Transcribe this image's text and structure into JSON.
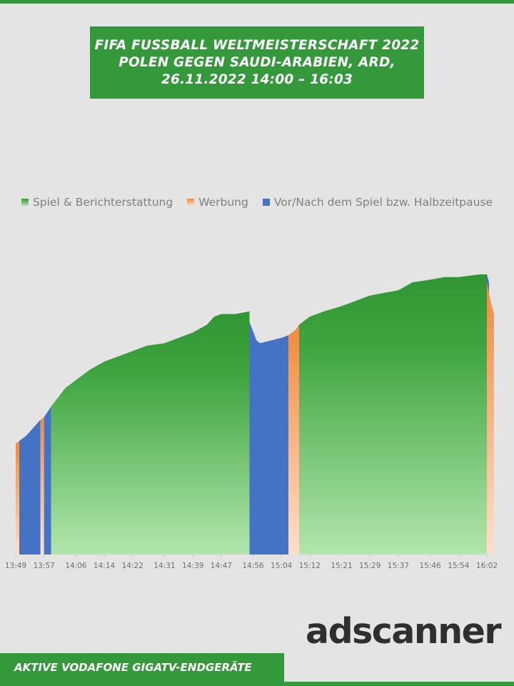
{
  "title_lines": [
    "FIFA FUSSBALL WELTMEISTERSCHAFT 2022",
    "POLEN GEGEN SAUDI-ARABIEN,  ARD,",
    "26.11.2022  14:00 – 16:03"
  ],
  "logo": {
    "ad": "ad",
    "rest": "scanner"
  },
  "footer": "AKTIVE VODAFONE GIGATV-ENDGERÄTE",
  "colors": {
    "accent": "#34993a",
    "game": "#34993a",
    "game_light": "#aee3a8",
    "ads": "#ef8a3c",
    "ads_light": "#fbdcc4",
    "pre_post": "#4472c4"
  },
  "chart_data": {
    "type": "area",
    "title": "",
    "xlabel": "",
    "ylabel": "",
    "x_ticks": [
      "13:49",
      "13:57",
      "14:06",
      "14:14",
      "14:22",
      "14:31",
      "14:39",
      "14:47",
      "14:56",
      "15:04",
      "15:12",
      "15:21",
      "15:29",
      "15:37",
      "15:46",
      "15:54",
      "16:02"
    ],
    "x_range": [
      "13:49",
      "16:04"
    ],
    "grid": false,
    "legend_position": "top",
    "legend": [
      {
        "label": "Spiel & Berichterstattung",
        "color_key": "game"
      },
      {
        "label": "Werbung",
        "color_key": "ads"
      },
      {
        "label": "Vor/Nach dem Spiel bzw. Halbzeitpause",
        "color_key": "pre_post"
      }
    ],
    "y_axis_visible": false,
    "value_unit": "relative audience (peak = 100)",
    "segments": [
      {
        "series": "Werbung",
        "start": "13:49",
        "end": "13:50",
        "points": [
          [
            "13:49",
            42
          ],
          [
            "13:50",
            43
          ]
        ]
      },
      {
        "series": "Vor/Nach dem Spiel bzw. Halbzeitpause",
        "start": "13:50",
        "end": "13:56",
        "points": [
          [
            "13:50",
            43
          ],
          [
            "13:52",
            45
          ],
          [
            "13:54",
            48
          ],
          [
            "13:56",
            51
          ]
        ]
      },
      {
        "series": "Werbung",
        "start": "13:56",
        "end": "13:57",
        "points": [
          [
            "13:56",
            51
          ],
          [
            "13:57",
            52
          ]
        ]
      },
      {
        "series": "Vor/Nach dem Spiel bzw. Halbzeitpause",
        "start": "13:57",
        "end": "13:59",
        "points": [
          [
            "13:57",
            52
          ],
          [
            "13:58",
            54
          ],
          [
            "13:59",
            56
          ]
        ]
      },
      {
        "series": "Spiel & Berichterstattung",
        "start": "13:59",
        "end": "14:55",
        "points": [
          [
            "13:59",
            56
          ],
          [
            "14:03",
            63
          ],
          [
            "14:06",
            66
          ],
          [
            "14:10",
            70
          ],
          [
            "14:14",
            73
          ],
          [
            "14:18",
            75
          ],
          [
            "14:22",
            77
          ],
          [
            "14:26",
            79
          ],
          [
            "14:31",
            80
          ],
          [
            "14:35",
            82
          ],
          [
            "14:39",
            84
          ],
          [
            "14:43",
            87
          ],
          [
            "14:45",
            90
          ],
          [
            "14:47",
            91
          ],
          [
            "14:51",
            91
          ],
          [
            "14:55",
            92
          ]
        ]
      },
      {
        "series": "Vor/Nach dem Spiel bzw. Halbzeitpause",
        "start": "14:55",
        "end": "15:06",
        "points": [
          [
            "14:55",
            88
          ],
          [
            "14:57",
            81
          ],
          [
            "14:58",
            80
          ],
          [
            "15:01",
            81
          ],
          [
            "15:04",
            82
          ],
          [
            "15:06",
            83
          ]
        ]
      },
      {
        "series": "Werbung",
        "start": "15:06",
        "end": "15:09",
        "points": [
          [
            "15:06",
            83
          ],
          [
            "15:08",
            85
          ],
          [
            "15:09",
            87
          ]
        ]
      },
      {
        "series": "Spiel & Berichterstattung",
        "start": "15:09",
        "end": "16:02",
        "points": [
          [
            "15:09",
            87
          ],
          [
            "15:12",
            90
          ],
          [
            "15:16",
            92
          ],
          [
            "15:21",
            94
          ],
          [
            "15:25",
            96
          ],
          [
            "15:29",
            98
          ],
          [
            "15:33",
            99
          ],
          [
            "15:37",
            100
          ],
          [
            "15:41",
            103
          ],
          [
            "15:46",
            104
          ],
          [
            "15:50",
            105
          ],
          [
            "15:54",
            105
          ],
          [
            "16:00",
            106
          ],
          [
            "16:02",
            106
          ]
        ]
      },
      {
        "series": "Vor/Nach dem Spiel bzw. Halbzeitpause",
        "start": "16:02",
        "end": "16:02",
        "points": [
          [
            "16:02",
            106
          ],
          [
            "16:02",
            103
          ]
        ]
      },
      {
        "series": "Werbung",
        "start": "16:02",
        "end": "16:04",
        "points": [
          [
            "16:02",
            103
          ],
          [
            "16:03",
            96
          ],
          [
            "16:04",
            91
          ]
        ]
      }
    ]
  }
}
